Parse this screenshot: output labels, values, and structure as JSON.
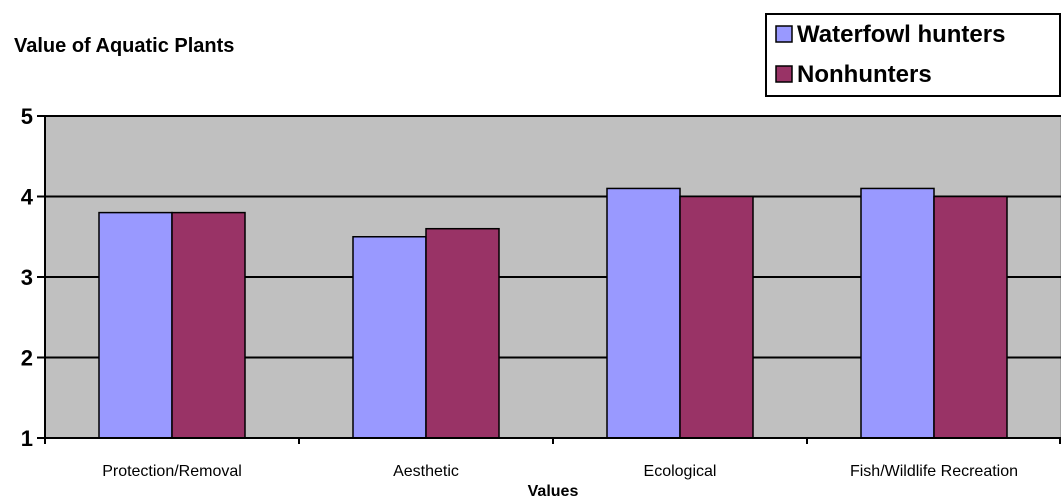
{
  "chart_data": {
    "type": "bar",
    "title": "Value of Aquatic Plants",
    "xlabel": "Values",
    "ylabel": "",
    "ylim": [
      1,
      5
    ],
    "yticks": [
      1,
      2,
      3,
      4,
      5
    ],
    "grid": true,
    "legend_position": "top-right",
    "categories": [
      "Protection/Removal",
      "Aesthetic",
      "Ecological",
      "Fish/Wildlife Recreation"
    ],
    "series": [
      {
        "name": "Waterfowl hunters",
        "values": [
          3.8,
          3.5,
          4.1,
          4.1
        ],
        "color": "#9999ff"
      },
      {
        "name": "Nonhunters",
        "values": [
          3.8,
          3.6,
          4.0,
          4.0
        ],
        "color": "#993366"
      }
    ],
    "plot_background": "#c0c0c0"
  }
}
